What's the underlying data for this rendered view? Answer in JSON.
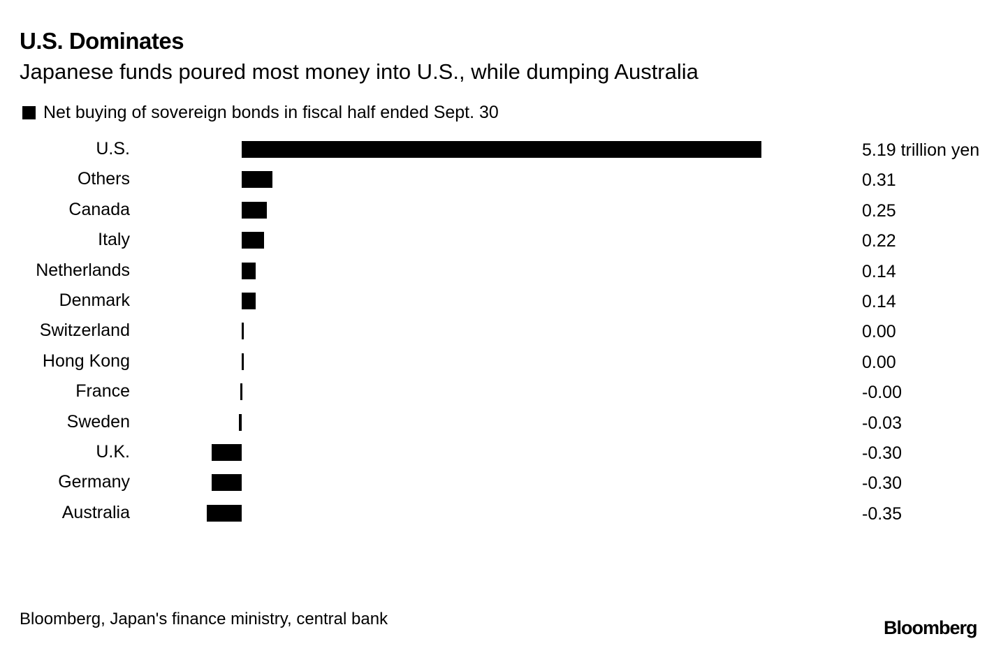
{
  "header": {
    "title": "U.S. Dominates",
    "subtitle": "Japanese funds poured most money into U.S., while dumping Australia"
  },
  "chart_data": {
    "type": "bar",
    "orientation": "horizontal",
    "title": "U.S. Dominates",
    "subtitle": "Japanese funds poured most money into U.S., while dumping Australia",
    "legend": [
      "Net buying of sovereign bonds in fiscal half ended Sept. 30"
    ],
    "legend_position": "top-left",
    "unit": "trillion yen",
    "categories": [
      "U.S.",
      "Others",
      "Canada",
      "Italy",
      "Netherlands",
      "Denmark",
      "Switzerland",
      "Hong Kong",
      "France",
      "Sweden",
      "U.K.",
      "Germany",
      "Australia"
    ],
    "values": [
      5.19,
      0.31,
      0.25,
      0.22,
      0.14,
      0.14,
      0.0,
      0.0,
      -0.0,
      -0.03,
      -0.3,
      -0.3,
      -0.35
    ],
    "value_labels": [
      "5.19 trillion yen",
      "0.31",
      "0.25",
      "0.22",
      "0.14",
      "0.14",
      "0.00",
      "0.00",
      "-0.00",
      "-0.03",
      "-0.30",
      "-0.30",
      "-0.35"
    ],
    "color": "#000000",
    "grid": false
  },
  "footer": {
    "source": "Bloomberg, Japan's finance ministry, central bank",
    "logo": "Bloomberg"
  }
}
